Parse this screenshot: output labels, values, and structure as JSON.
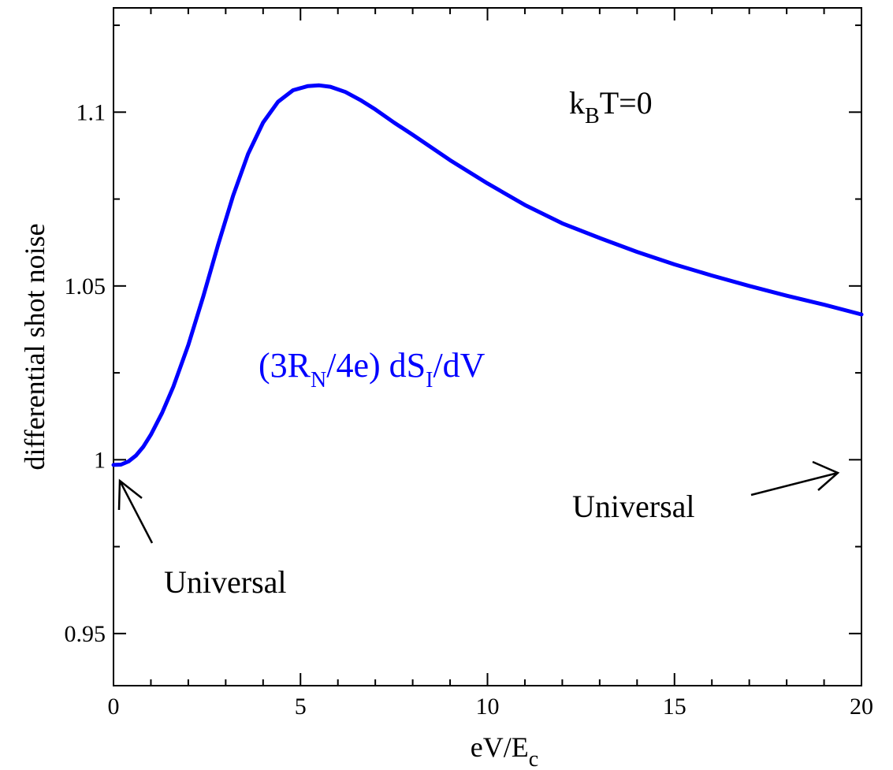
{
  "chart_data": {
    "type": "line",
    "title": "",
    "xlabel": {
      "base": "eV/E",
      "sub": "c"
    },
    "ylabel": "differential shot noise",
    "xlim": [
      0,
      20
    ],
    "ylim": [
      0.935,
      1.13
    ],
    "x_ticks": [
      0,
      5,
      10,
      15,
      20
    ],
    "x_tick_labels": [
      "0",
      "5",
      "10",
      "15",
      "20"
    ],
    "y_ticks": [
      0.95,
      1.0,
      1.05,
      1.1
    ],
    "y_tick_labels": [
      "0.95",
      "1",
      "1.05",
      "1.1"
    ],
    "grid": false,
    "series": [
      {
        "color": "#0000ff",
        "x": [
          0,
          0.2,
          0.4,
          0.6,
          0.8,
          1.0,
          1.3,
          1.6,
          2.0,
          2.4,
          2.8,
          3.2,
          3.6,
          4.0,
          4.4,
          4.8,
          5.2,
          5.5,
          5.8,
          6.2,
          6.6,
          7.0,
          7.5,
          8.0,
          9.0,
          10.0,
          11.0,
          12.0,
          13.0,
          14.0,
          15.0,
          16.0,
          17.0,
          18.0,
          19.0,
          20.0
        ],
        "y": [
          0.9985,
          0.9986,
          0.9995,
          1.0012,
          1.0038,
          1.0072,
          1.0135,
          1.021,
          1.033,
          1.047,
          1.062,
          1.076,
          1.088,
          1.097,
          1.103,
          1.1063,
          1.1075,
          1.1077,
          1.1073,
          1.1058,
          1.1035,
          1.1008,
          1.097,
          1.0935,
          1.0862,
          1.0795,
          1.0733,
          1.068,
          1.0638,
          1.0598,
          1.0562,
          1.053,
          1.05,
          1.0472,
          1.0446,
          1.0418
        ]
      }
    ],
    "annotations": {
      "temperature": {
        "pre": "k",
        "sub": "B",
        "post": "T=0"
      },
      "series_label": {
        "p1": "(3R",
        "s1": "N",
        "p2": "/4e) dS",
        "s2": "I",
        "p3": "/dV"
      },
      "universal_left": "Universal",
      "universal_right": "Universal",
      "edge_glyph": ")"
    }
  }
}
